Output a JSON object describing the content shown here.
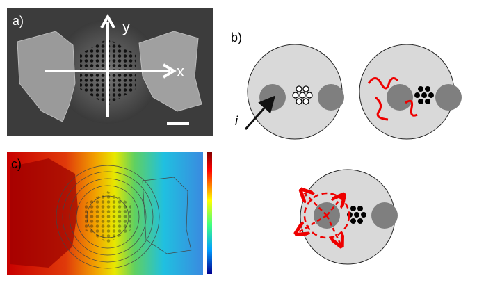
{
  "panels": {
    "a": {
      "label": "a)",
      "y_axis": "y",
      "x_axis": "x"
    },
    "b": {
      "label": "b)",
      "arrow_label": "i"
    },
    "c": {
      "label": "c)"
    }
  }
}
